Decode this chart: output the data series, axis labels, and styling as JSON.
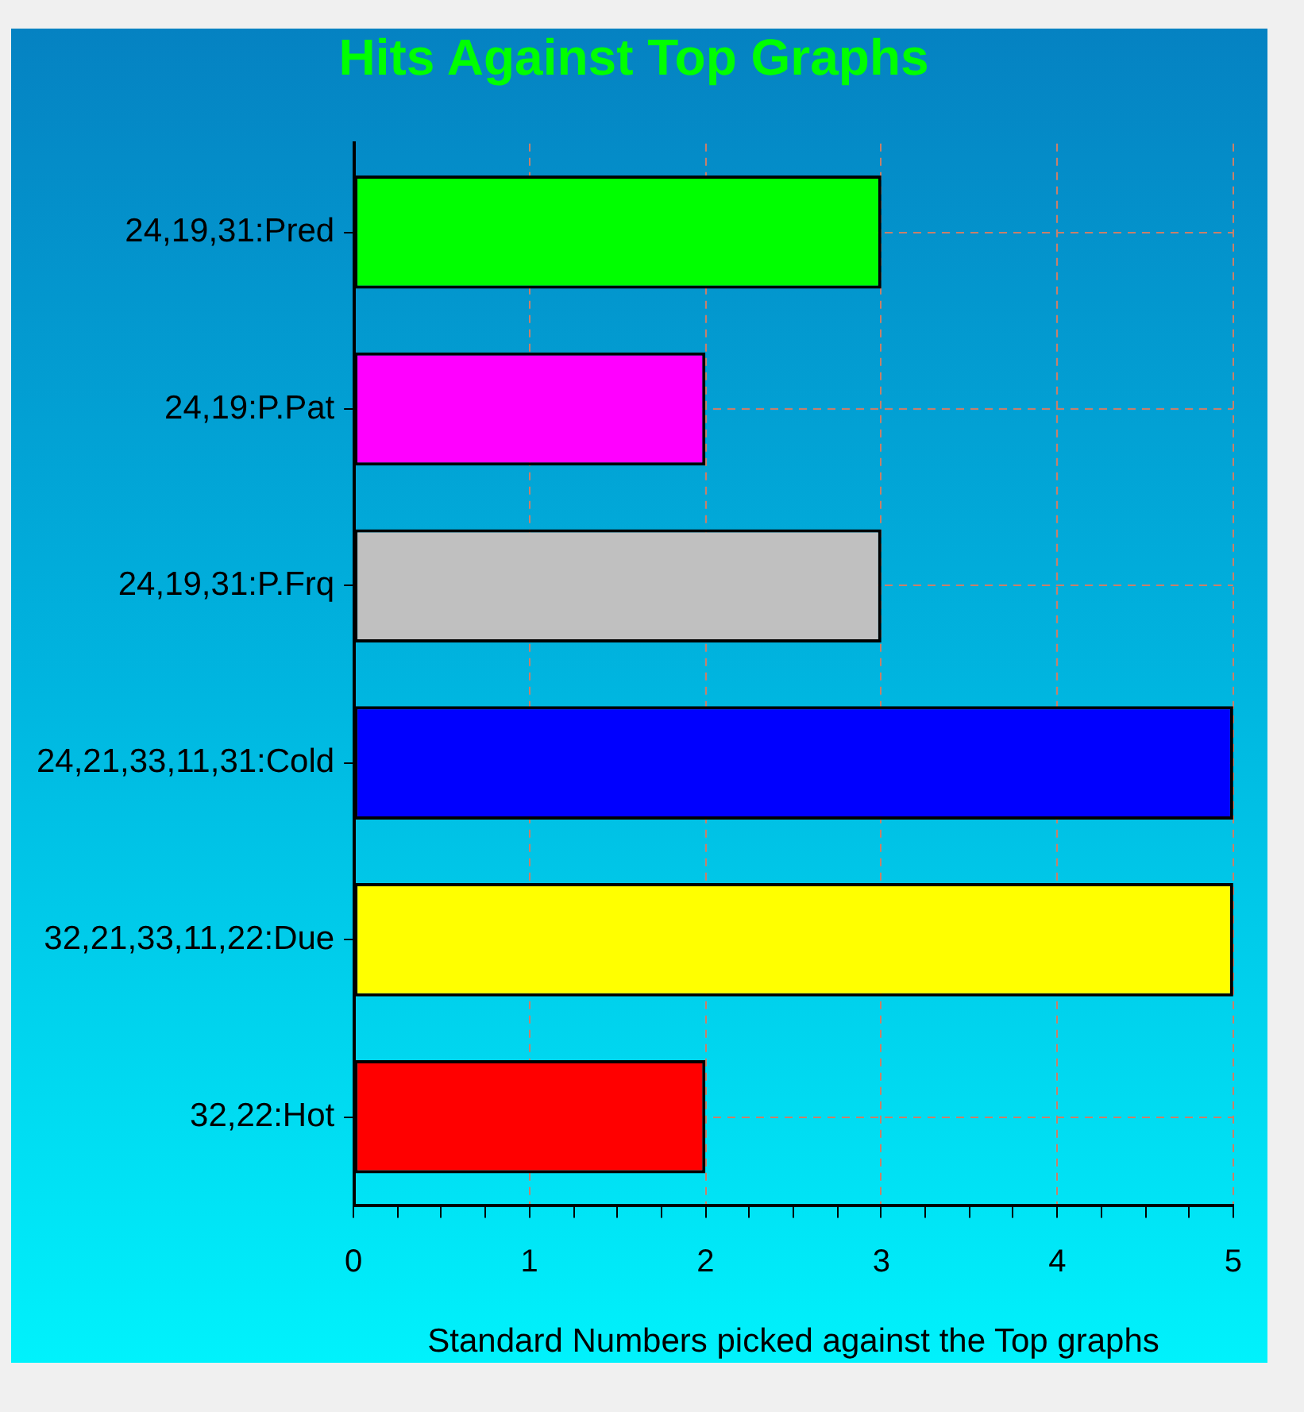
{
  "chart_data": {
    "type": "bar",
    "orientation": "horizontal",
    "title": "Hits Against Top Graphs",
    "xlabel": "Standard Numbers picked against the Top graphs",
    "categories": [
      "24,19,31:Pred",
      "24,19:P.Pat",
      "24,19,31:P.Frq",
      "24,21,33,11,31:Cold",
      "32,21,33,11,22:Due",
      "32,22:Hot"
    ],
    "values": [
      3,
      2,
      3,
      5,
      5,
      2
    ],
    "colors": [
      "#00ff00",
      "#ff00ff",
      "#c0c0c0",
      "#0000ff",
      "#ffff00",
      "#ff0000"
    ],
    "xlim": [
      0,
      5
    ],
    "xticks": [
      0,
      {
        "value": 0.25,
        "label": null
      },
      {
        "value": 0.5,
        "label": null
      },
      {
        "value": 0.75,
        "label": null
      },
      1,
      {
        "value": 1.25,
        "label": null
      },
      {
        "value": 1.5,
        "label": null
      },
      {
        "value": 1.75,
        "label": null
      },
      2,
      {
        "value": 2.25,
        "label": null
      },
      {
        "value": 2.5,
        "label": null
      },
      {
        "value": 2.75,
        "label": null
      },
      3,
      {
        "value": 3.25,
        "label": null
      },
      {
        "value": 3.5,
        "label": null
      },
      {
        "value": 3.75,
        "label": null
      },
      4,
      {
        "value": 4.25,
        "label": null
      },
      {
        "value": 4.5,
        "label": null
      },
      {
        "value": 4.75,
        "label": null
      },
      5
    ],
    "grid": true
  }
}
